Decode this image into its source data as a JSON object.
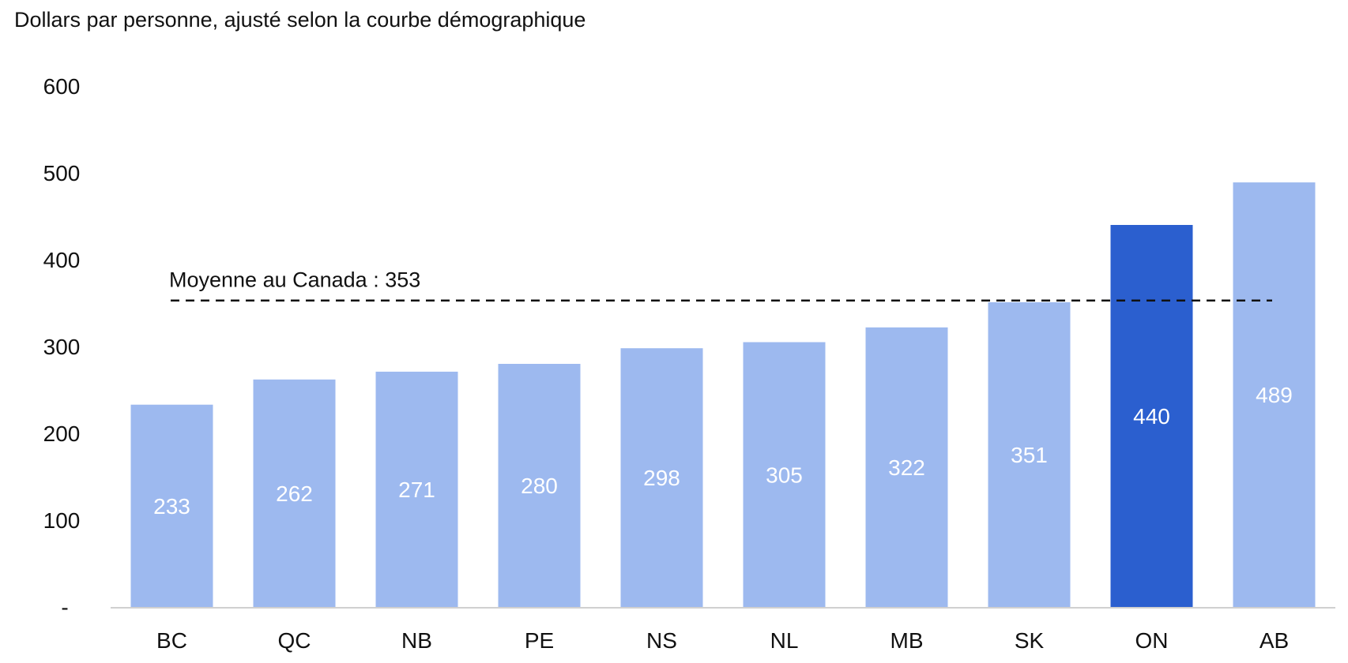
{
  "chart_data": {
    "type": "bar",
    "title": "Dollars par personne, ajusté selon la courbe démographique",
    "categories": [
      "BC",
      "QC",
      "NB",
      "PE",
      "NS",
      "NL",
      "MB",
      "SK",
      "ON",
      "AB"
    ],
    "values": [
      233,
      262,
      271,
      280,
      298,
      305,
      322,
      351,
      440,
      489
    ],
    "value_labels": [
      "233",
      "262",
      "271",
      "280",
      "298",
      "305",
      "322",
      "351",
      "440",
      "489"
    ],
    "highlight_category": "ON",
    "ylim": [
      0,
      600
    ],
    "y_ticks": [
      {
        "value": 0,
        "label": "-"
      },
      {
        "value": 100,
        "label": "100"
      },
      {
        "value": 200,
        "label": "200"
      },
      {
        "value": 300,
        "label": "300"
      },
      {
        "value": 400,
        "label": "400"
      },
      {
        "value": 500,
        "label": "500"
      },
      {
        "value": 600,
        "label": "600"
      }
    ],
    "reference_line": {
      "value": 353,
      "label": "Moyenne au Canada : 353",
      "style": "dashed"
    },
    "grid": false,
    "legend": "none"
  },
  "colors": {
    "bar": "#9DB9EF",
    "bar_highlight": "#2B5FCF",
    "axis": "#d0d0d0",
    "reference_line": "#111111",
    "text": "#111111",
    "value_text": "#ffffff"
  }
}
